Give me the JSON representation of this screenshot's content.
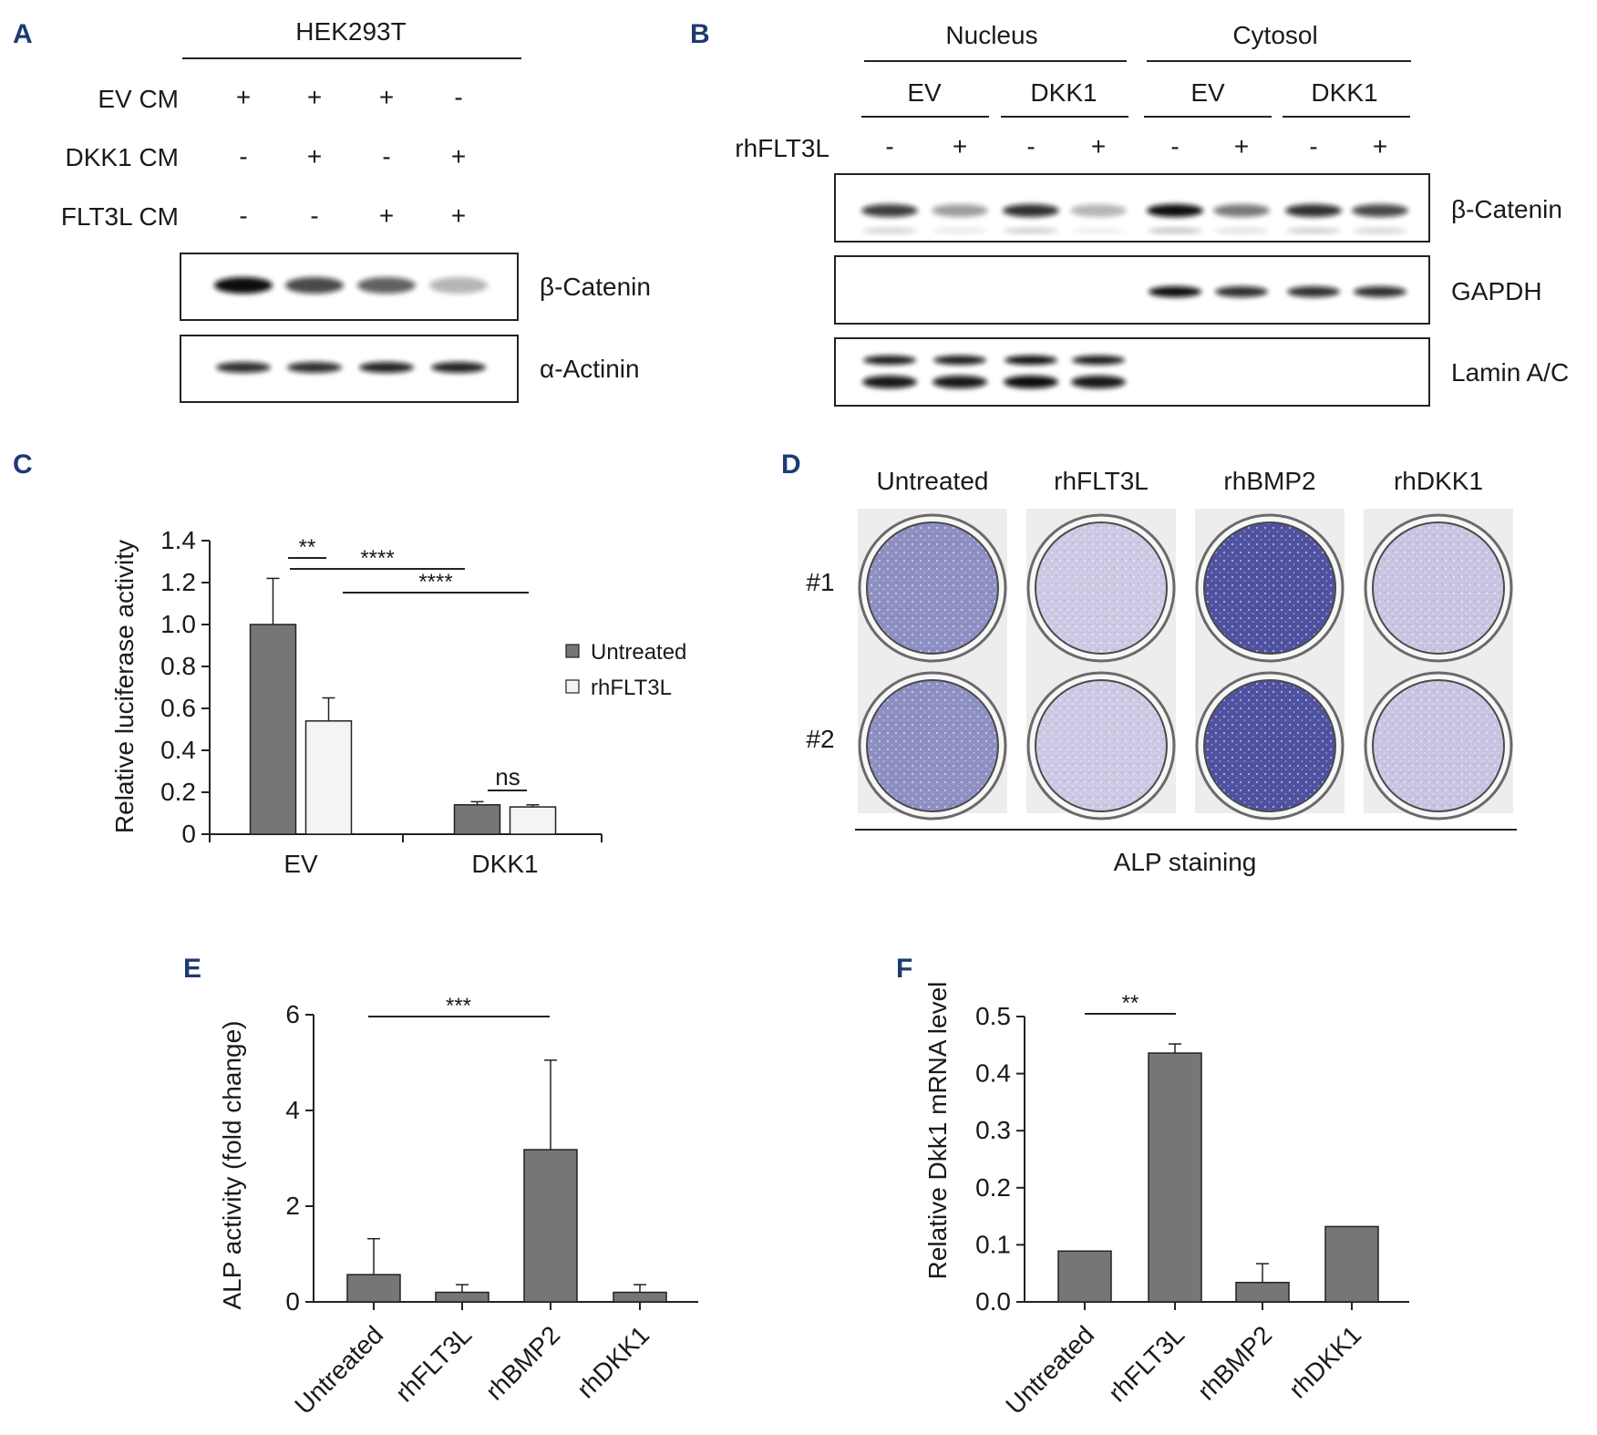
{
  "colors": {
    "bar_dark": "#767676",
    "bar_light": "#f4f4f4",
    "panel_label": "#1d3b72",
    "stain_low": "#dcd9ec",
    "stain_high": "#5b5ca8"
  },
  "panelA": {
    "label": "A",
    "cell_line": "HEK293T",
    "rows": [
      {
        "name": "EV CM",
        "signs": [
          "+",
          "+",
          "+",
          "-"
        ]
      },
      {
        "name": "DKK1 CM",
        "signs": [
          "-",
          "+",
          "-",
          "+"
        ]
      },
      {
        "name": "FLT3L CM",
        "signs": [
          "-",
          "-",
          "+",
          "+"
        ]
      }
    ],
    "blots": [
      "β-Catenin",
      "α-Actinin"
    ],
    "band_intensity": {
      "beta_catenin": [
        1.0,
        0.75,
        0.65,
        0.3
      ],
      "alpha_actinin": [
        0.85,
        0.85,
        0.9,
        0.9
      ]
    }
  },
  "panelB": {
    "label": "B",
    "fractions": [
      "Nucleus",
      "Cytosol"
    ],
    "groups": [
      "EV",
      "DKK1",
      "EV",
      "DKK1"
    ],
    "treatment_label": "rhFLT3L",
    "signs": [
      "-",
      "+",
      "-",
      "+",
      "-",
      "+",
      "-",
      "+"
    ],
    "blots": [
      "β-Catenin",
      "GAPDH",
      "Lamin A/C"
    ],
    "band_intensity": {
      "beta_catenin": [
        0.8,
        0.4,
        0.85,
        0.3,
        1.0,
        0.55,
        0.85,
        0.75
      ],
      "gapdh": [
        0,
        0,
        0,
        0,
        1.0,
        0.85,
        0.85,
        0.85
      ],
      "lamin": [
        0.95,
        0.95,
        1.0,
        0.95,
        0,
        0,
        0,
        0
      ]
    }
  },
  "panelC": {
    "label": "C",
    "legend": [
      "Untreated",
      "rhFLT3L"
    ],
    "significance": [
      "**",
      "****",
      "****",
      "ns"
    ]
  },
  "panelD": {
    "label": "D",
    "columns": [
      "Untreated",
      "rhFLT3L",
      "rhBMP2",
      "rhDKK1"
    ],
    "rows": [
      "#1",
      "#2"
    ],
    "stain_intensity": [
      0.55,
      0.12,
      1.0,
      0.15
    ],
    "caption": "ALP staining"
  },
  "panelE": {
    "label": "E",
    "significance": [
      "***"
    ]
  },
  "panelF": {
    "label": "F",
    "significance": [
      "**"
    ]
  },
  "chart_data": [
    {
      "type": "bar",
      "panel": "C",
      "categories": [
        "EV",
        "DKK1"
      ],
      "series": [
        {
          "name": "Untreated",
          "values": [
            1.0,
            0.14
          ],
          "errors": [
            0.22,
            0.015
          ]
        },
        {
          "name": "rhFLT3L",
          "values": [
            0.54,
            0.13
          ],
          "errors": [
            0.11,
            0.01
          ]
        }
      ],
      "ylabel": "Relative luciferase activity",
      "ylim": [
        0,
        1.4
      ],
      "yticks": [
        "0",
        "0.2",
        "0.4",
        "0.6",
        "0.8",
        "1.0",
        "1.2",
        "1.4"
      ]
    },
    {
      "type": "bar",
      "panel": "E",
      "categories": [
        "Untreated",
        "rhFLT3L",
        "rhBMP2",
        "rhDKK1"
      ],
      "values": [
        0.57,
        0.2,
        3.18,
        0.2
      ],
      "errors": [
        0.75,
        0.16,
        1.87,
        0.16
      ],
      "ylabel": "ALP activity (fold change)",
      "ylim": [
        0,
        6
      ],
      "yticks": [
        "0",
        "2",
        "4",
        "6"
      ]
    },
    {
      "type": "bar",
      "panel": "F",
      "categories": [
        "Untreated",
        "rhFLT3L",
        "rhBMP2",
        "rhDKK1"
      ],
      "values": [
        0.089,
        0.436,
        0.034,
        0.132
      ],
      "errors": [
        0.0,
        0.016,
        0.033,
        0.0
      ],
      "ylabel": "Relative Dkk1 mRNA level",
      "ylim": [
        0,
        0.5
      ],
      "yticks": [
        "0.0",
        "0.1",
        "0.2",
        "0.3",
        "0.4",
        "0.5"
      ]
    }
  ]
}
